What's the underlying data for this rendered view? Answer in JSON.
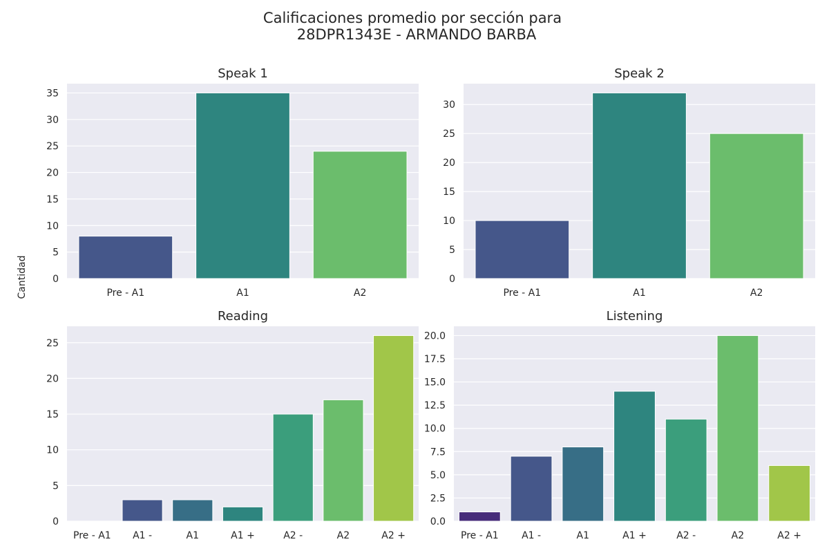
{
  "figure": {
    "title_line1": "Calificaciones promedio por sección para",
    "title_line2": "28DPR1343E - ARMANDO BARBA",
    "ylabel": "Cantidad",
    "background": "#ffffff",
    "panel_background": "#eaeaf2",
    "grid_color": "#ffffff"
  },
  "chart_data": [
    {
      "type": "bar",
      "title": "Speak 1",
      "categories": [
        "Pre - A1",
        "A1",
        "A2"
      ],
      "values": [
        8,
        35,
        24
      ],
      "colors": [
        "#45578a",
        "#2e857f",
        "#6bbd6c"
      ],
      "ylim": [
        0,
        36.75
      ],
      "yticks": [
        0,
        5,
        10,
        15,
        20,
        25,
        30,
        35
      ],
      "grid": true
    },
    {
      "type": "bar",
      "title": "Speak 2",
      "categories": [
        "Pre - A1",
        "A1",
        "A2"
      ],
      "values": [
        10,
        32,
        25
      ],
      "colors": [
        "#45578a",
        "#2e857f",
        "#6bbd6c"
      ],
      "ylim": [
        0,
        33.6
      ],
      "yticks": [
        0,
        5,
        10,
        15,
        20,
        25,
        30
      ],
      "grid": true
    },
    {
      "type": "bar",
      "title": "Reading",
      "categories": [
        "Pre - A1",
        "A1 -",
        "A1",
        "A1 +",
        "A2 -",
        "A2",
        "A2 +"
      ],
      "values": [
        0,
        3,
        3,
        2,
        15,
        17,
        26
      ],
      "colors": [
        "#472c7a",
        "#45578a",
        "#376e86",
        "#2e857f",
        "#3b9e7c",
        "#6bbd6c",
        "#a1c649"
      ],
      "ylim": [
        0,
        27.3
      ],
      "yticks": [
        0,
        5,
        10,
        15,
        20,
        25
      ],
      "grid": true
    },
    {
      "type": "bar",
      "title": "Listening",
      "categories": [
        "Pre - A1",
        "A1 -",
        "A1",
        "A1 +",
        "A2 -",
        "A2",
        "A2 +"
      ],
      "values": [
        1,
        7,
        8,
        14,
        11,
        20,
        6
      ],
      "colors": [
        "#472c7a",
        "#45578a",
        "#376e86",
        "#2e857f",
        "#3b9e7c",
        "#6bbd6c",
        "#a1c649"
      ],
      "ylim": [
        0,
        21
      ],
      "yticks": [
        0.0,
        2.5,
        5.0,
        7.5,
        10.0,
        12.5,
        15.0,
        17.5,
        20.0
      ],
      "ytick_decimals": 1,
      "grid": true
    }
  ]
}
